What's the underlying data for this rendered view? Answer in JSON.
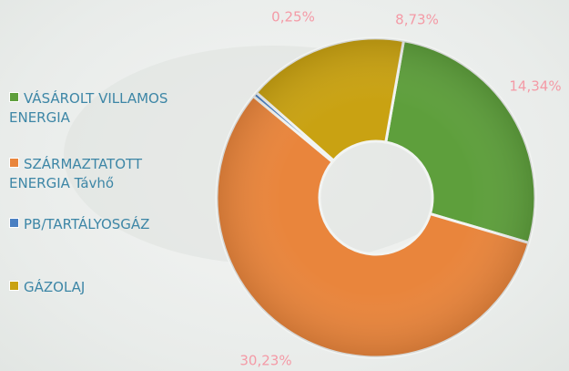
{
  "chart_data": {
    "type": "donut",
    "categories": [
      "VÁSÁROLT VILLAMOS ENERGIA",
      "SZÁRMAZTATOTT ENERGIA Távhő",
      "PB/TARTÁLYOSGÁZ",
      "GÁZOLAJ"
    ],
    "values": [
      14.34,
      30.23,
      0.25,
      8.73
    ],
    "value_labels": [
      "14,34%",
      "30,23%",
      "0,25%",
      "8,73%"
    ],
    "colors": [
      "#5e9f3c",
      "#e9853c",
      "#4a80c2",
      "#c9a212"
    ],
    "legend": "left"
  }
}
